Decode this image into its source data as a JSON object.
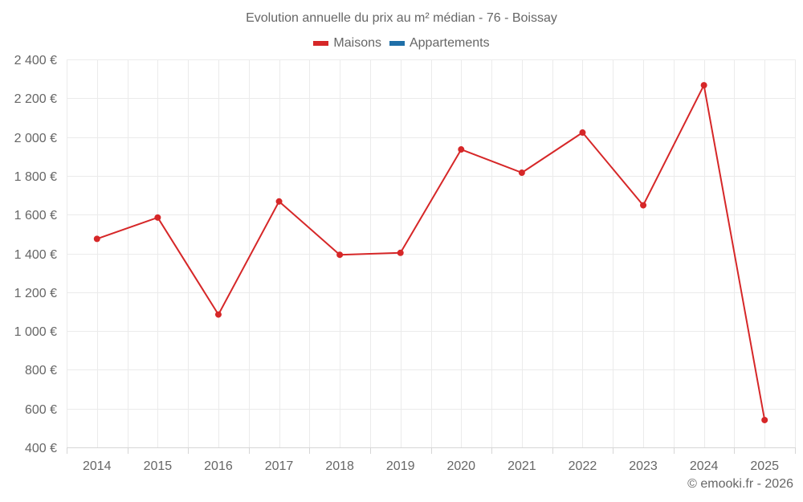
{
  "chart": {
    "title": "Evolution annuelle du prix au m² médian - 76 - Boissay",
    "credit": "© emooki.fr - 2026",
    "legend": [
      {
        "label": "Maisons",
        "color": "#d62728"
      },
      {
        "label": "Appartements",
        "color": "#1f6fa8"
      }
    ],
    "colors": {
      "maisons": "#d62728",
      "appartements": "#1f6fa8",
      "grid": "#ebebeb",
      "axis": "#d6d6d6",
      "text": "#666666"
    }
  },
  "chart_data": {
    "type": "line",
    "title": "Evolution annuelle du prix au m² médian - 76 - Boissay",
    "xlabel": "",
    "ylabel": "",
    "categories": [
      "2014",
      "2015",
      "2016",
      "2017",
      "2018",
      "2019",
      "2020",
      "2021",
      "2022",
      "2023",
      "2024",
      "2025"
    ],
    "series": [
      {
        "name": "Maisons",
        "color": "#d62728",
        "values": [
          1475,
          1585,
          1085,
          1668,
          1393,
          1403,
          1936,
          1816,
          2023,
          1648,
          2267,
          541
        ]
      },
      {
        "name": "Appartements",
        "color": "#1f6fa8",
        "values": []
      }
    ],
    "ylim": [
      400,
      2400
    ],
    "yticks": [
      400,
      600,
      800,
      1000,
      1200,
      1400,
      1600,
      1800,
      2000,
      2200,
      2400
    ],
    "ytick_labels": [
      "400 €",
      "600 €",
      "800 €",
      "1 000 €",
      "1 200 €",
      "1 400 €",
      "1 600 €",
      "1 800 €",
      "2 000 €",
      "2 200 €",
      "2 400 €"
    ],
    "grid": true,
    "legend_position": "top"
  }
}
